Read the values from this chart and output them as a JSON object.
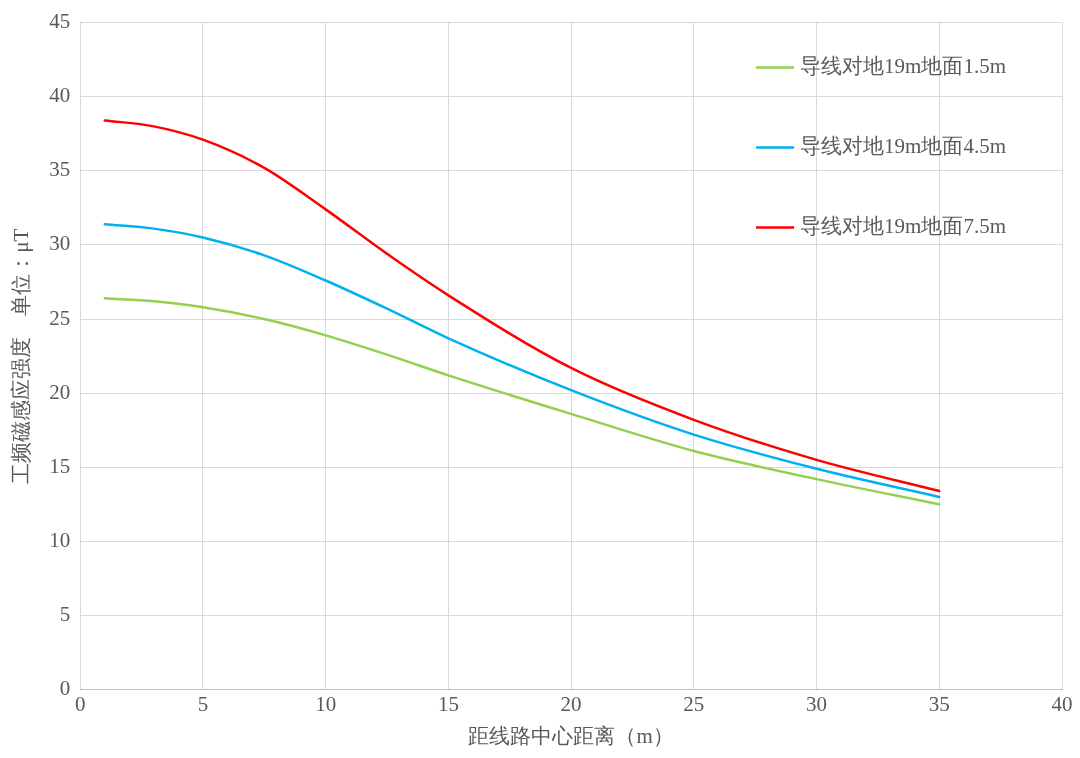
{
  "chart_data": {
    "type": "line",
    "xlabel": "距线路中心距离（m）",
    "ylabel": "工频磁感应强度　单位：μT",
    "xlim": [
      0,
      40
    ],
    "xticks": [
      0,
      5,
      10,
      15,
      20,
      25,
      30,
      35,
      40
    ],
    "ylim": [
      0,
      45
    ],
    "yticks": [
      0,
      5,
      10,
      15,
      20,
      25,
      30,
      35,
      40,
      45
    ],
    "grid": true,
    "legend": "top right",
    "marker": "none",
    "line_style": "solid",
    "x": [
      1,
      3,
      5,
      7.5,
      10,
      12.5,
      15,
      20,
      25,
      30,
      35
    ],
    "series": [
      {
        "name": "导线对地19m地面1.5m",
        "color": "#92d050",
        "values": [
          26.4,
          26.2,
          25.8,
          25.0,
          23.9,
          22.6,
          21.2,
          18.6,
          16.1,
          14.2,
          12.5
        ]
      },
      {
        "name": "导线对地19m地面4.5m",
        "color": "#00b0f0",
        "values": [
          31.4,
          31.1,
          30.5,
          29.3,
          27.6,
          25.7,
          23.7,
          20.2,
          17.2,
          14.9,
          13.0
        ]
      },
      {
        "name": "导线对地19m地面7.5m",
        "color": "#ff0000",
        "values": [
          38.4,
          38.0,
          37.1,
          35.2,
          32.4,
          29.4,
          26.6,
          21.7,
          18.2,
          15.5,
          13.4
        ]
      }
    ]
  }
}
